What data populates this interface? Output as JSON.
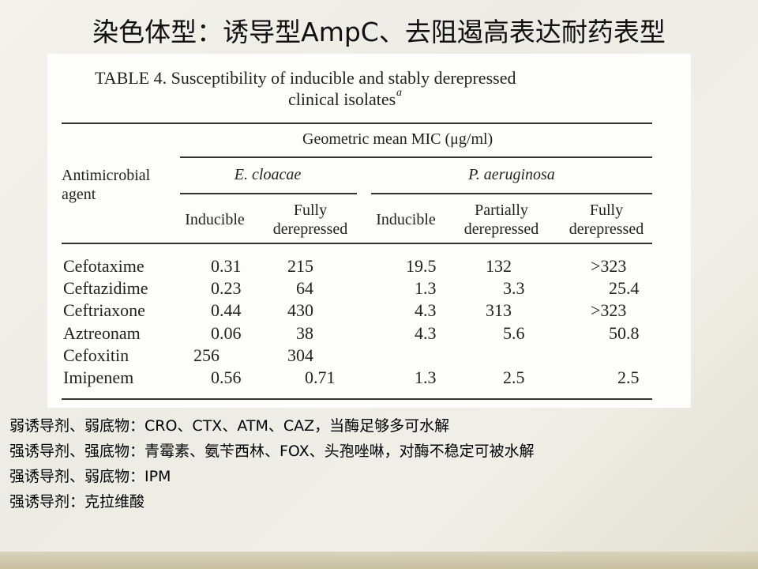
{
  "title": "染色体型：诱导型AmpC、去阻遏高表达耐药表型",
  "table": {
    "caption": [
      "TABLE 4. Susceptibility of inducible and stably derepressed",
      "clinical isolates"
    ],
    "caption_note": "a",
    "header": {
      "measure": "Geometric mean MIC (μg/ml)",
      "agent": "Antimicrobial agent",
      "groups": [
        "E. cloacae",
        "P. aeruginosa"
      ],
      "columns": [
        "Inducible",
        "Fully derepressed",
        "Inducible",
        "Partially derepressed",
        "Fully derepressed"
      ]
    },
    "rows": [
      {
        "agent": "Cefotaxime",
        "values": [
          "0.31",
          "215",
          "19.5",
          "132",
          ">323"
        ]
      },
      {
        "agent": "Ceftazidime",
        "values": [
          "0.23",
          "64",
          "1.3",
          "3.3",
          "25.4"
        ]
      },
      {
        "agent": "Ceftriaxone",
        "values": [
          "0.44",
          "430",
          "4.3",
          "313",
          ">323"
        ]
      },
      {
        "agent": "Aztreonam",
        "values": [
          "0.06",
          "38",
          "4.3",
          "5.6",
          "50.8"
        ]
      },
      {
        "agent": "Cefoxitin",
        "values": [
          "256",
          "304"
        ]
      },
      {
        "agent": "Imipenem",
        "values": [
          "0.56",
          "0.71",
          "1.3",
          "2.5",
          "2.5"
        ]
      }
    ]
  },
  "notes": [
    "弱诱导剂、弱底物：CRO、CTX、ATM、CAZ，当酶足够多可水解",
    "强诱导剂、强底物：青霉素、氨苄西林、FOX、头孢唑啉，对酶不稳定可被水解",
    "强诱导剂、弱底物：IPM",
    "强诱导剂：克拉维酸"
  ]
}
